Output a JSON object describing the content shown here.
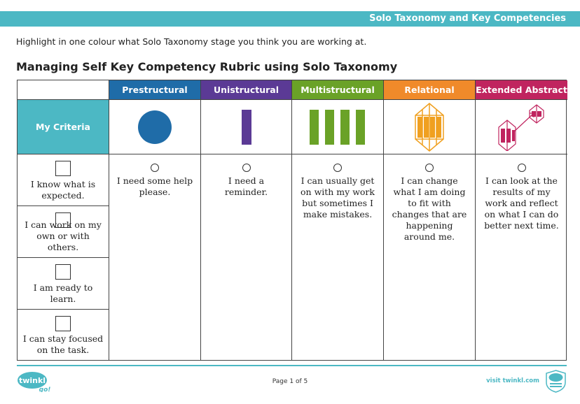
{
  "header": {
    "title": "Solo Taxonomy and Key Competencies"
  },
  "instruction": "Highlight in one colour what Solo Taxonomy stage you think you are working at.",
  "heading": "Managing Self Key Competency Rubric using Solo Taxonomy",
  "criteria_label": "My Criteria",
  "stages": [
    {
      "label": "Prestructural",
      "color": "#1f6ca8",
      "icon": "circle-icon",
      "description": "I need some help please."
    },
    {
      "label": "Unistructural",
      "color": "#5b3a95",
      "icon": "single-bar-icon",
      "description": "I need a reminder."
    },
    {
      "label": "Multistructural",
      "color": "#6aa227",
      "icon": "four-bars-icon",
      "description": "I can usually get on with my work but sometimes I make mistakes."
    },
    {
      "label": "Relational",
      "color": "#f08a2a",
      "icon": "relational-lattice-icon",
      "description": "I can change what I am doing to fit with changes that are happening around me."
    },
    {
      "label": "Extended Abstract",
      "color": "#c0245f",
      "icon": "extended-abstract-icon",
      "description": "I can look at the results of my work and reflect on what I can do better next time."
    }
  ],
  "criteria": [
    {
      "text": "I know what is expected."
    },
    {
      "text": "I can work on my own or with others."
    },
    {
      "text": "I am ready to learn."
    },
    {
      "text": "I can stay focused on the task."
    }
  ],
  "accent_color": "#4cb8c4",
  "footer": {
    "page": "Page 1 of 5",
    "visit": "visit twinkl.com",
    "logo_text": "twinkl",
    "logo_sub": "go!"
  }
}
